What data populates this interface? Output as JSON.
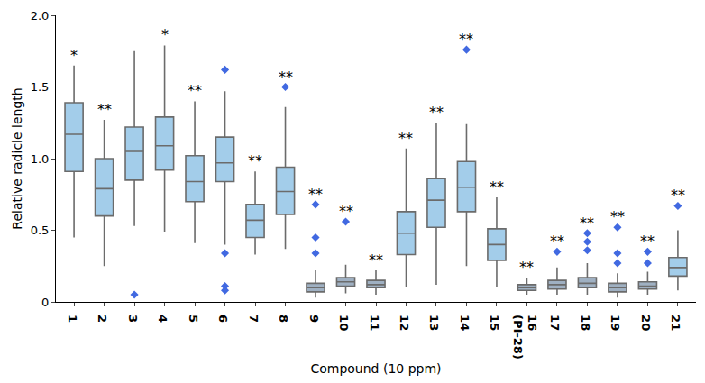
{
  "chart_data": {
    "type": "box",
    "x_label": "Compound (10 ppm)",
    "y_label": "Relative radicle length",
    "categories": [
      "1",
      "2",
      "3",
      "4",
      "5",
      "6",
      "7",
      "8",
      "9",
      "10",
      "11",
      "12",
      "13",
      "14",
      "15",
      "16\n(PI-28)",
      "17",
      "18",
      "19",
      "20",
      "21"
    ],
    "q1": [
      0.91,
      0.6,
      0.85,
      0.92,
      0.7,
      0.84,
      0.45,
      0.61,
      0.07,
      0.11,
      0.1,
      0.33,
      0.52,
      0.63,
      0.29,
      0.08,
      0.09,
      0.1,
      0.07,
      0.09,
      0.18
    ],
    "median": [
      1.17,
      0.79,
      1.05,
      1.09,
      0.84,
      0.97,
      0.57,
      0.77,
      0.1,
      0.14,
      0.12,
      0.48,
      0.71,
      0.8,
      0.4,
      0.1,
      0.12,
      0.13,
      0.1,
      0.11,
      0.24
    ],
    "q3": [
      1.39,
      1.0,
      1.22,
      1.29,
      1.02,
      1.15,
      0.68,
      0.94,
      0.13,
      0.17,
      0.15,
      0.63,
      0.86,
      0.98,
      0.51,
      0.12,
      0.15,
      0.17,
      0.13,
      0.14,
      0.31
    ],
    "lowerfence": [
      0.45,
      0.25,
      0.53,
      0.49,
      0.41,
      0.4,
      0.33,
      0.37,
      0.03,
      0.06,
      0.05,
      0.1,
      0.12,
      0.25,
      0.1,
      0.05,
      0.05,
      0.05,
      0.03,
      0.05,
      0.08
    ],
    "upperfence": [
      1.65,
      1.27,
      1.75,
      1.79,
      1.4,
      1.47,
      0.91,
      1.36,
      0.22,
      0.26,
      0.22,
      1.07,
      1.25,
      1.24,
      0.73,
      0.17,
      0.24,
      0.27,
      0.2,
      0.21,
      0.5
    ],
    "outliers": [
      [],
      [],
      [
        0.05
      ],
      [],
      [],
      [
        1.62,
        0.34,
        0.11,
        0.08
      ],
      [],
      [
        1.5
      ],
      [
        0.68,
        0.45,
        0.34
      ],
      [
        0.56
      ],
      [],
      [],
      [],
      [
        1.76
      ],
      [],
      [],
      [
        0.35
      ],
      [
        0.48,
        0.42,
        0.36
      ],
      [
        0.52,
        0.34,
        0.27
      ],
      [
        0.35,
        0.27
      ],
      [
        0.67
      ]
    ],
    "significance": [
      "*",
      "**",
      null,
      "*",
      "**",
      null,
      "**",
      "**",
      "**",
      "**",
      "**",
      "**",
      "**",
      "**",
      "**",
      "**",
      "**",
      "**",
      "**",
      "**",
      "**"
    ],
    "colors": [
      "#a3cdea",
      "#a3cdea",
      "#a3cdea",
      "#a3cdea",
      "#a3cdea",
      "#a3cdea",
      "#a3cdea",
      "#a3cdea",
      "#9fb0c2",
      "#9fb0c2",
      "#9fb0c2",
      "#a3cdea",
      "#a3cdea",
      "#a3cdea",
      "#a3cdea",
      "#9fb0c2",
      "#9fb0c2",
      "#9fb0c2",
      "#9fb0c2",
      "#9fb0c2",
      "#a3cdea"
    ],
    "color": "#4169e1",
    "marker": "diamond",
    "ylim": [
      0,
      2
    ],
    "yticks": [
      0,
      0.5,
      {
        "value": 1,
        "label": "1.0"
      },
      1.5,
      {
        "value": 2,
        "label": "2.0"
      }
    ],
    "grid": false
  }
}
